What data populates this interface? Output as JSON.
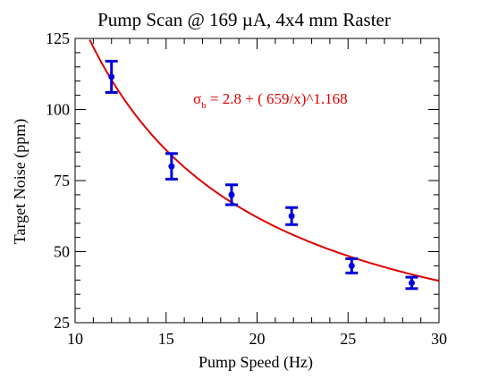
{
  "chart_data": {
    "type": "scatter",
    "title": "Pump Scan @ 169 µA, 4x4 mm Raster",
    "xlabel": "Pump Speed (Hz)",
    "ylabel": "Target Noise (ppm)",
    "xlim": [
      10,
      30
    ],
    "ylim": [
      25,
      125
    ],
    "xticks": [
      "10",
      "15",
      "20",
      "25",
      "30"
    ],
    "yticks": [
      "25",
      "50",
      "75",
      "100",
      "125"
    ],
    "grid": false,
    "series": [
      {
        "points": [
          {
            "x": 12.0,
            "y": 111.5,
            "err": 5.5
          },
          {
            "x": 15.3,
            "y": 80.0,
            "err": 4.5
          },
          {
            "x": 18.6,
            "y": 70.0,
            "err": 3.5
          },
          {
            "x": 21.9,
            "y": 62.5,
            "err": 3.0
          },
          {
            "x": 25.2,
            "y": 45.0,
            "err": 2.5
          },
          {
            "x": 28.5,
            "y": 39.0,
            "err": 2.0
          }
        ],
        "color": "#0000dd"
      }
    ],
    "fit": {
      "color": "#dd0000",
      "a": 2.8,
      "c": 659,
      "p": 1.168,
      "annotation_sigma": "σ",
      "annotation_sub": "b",
      "annotation_rest": " = 2.8 + ( 659/x)^1.168"
    }
  }
}
